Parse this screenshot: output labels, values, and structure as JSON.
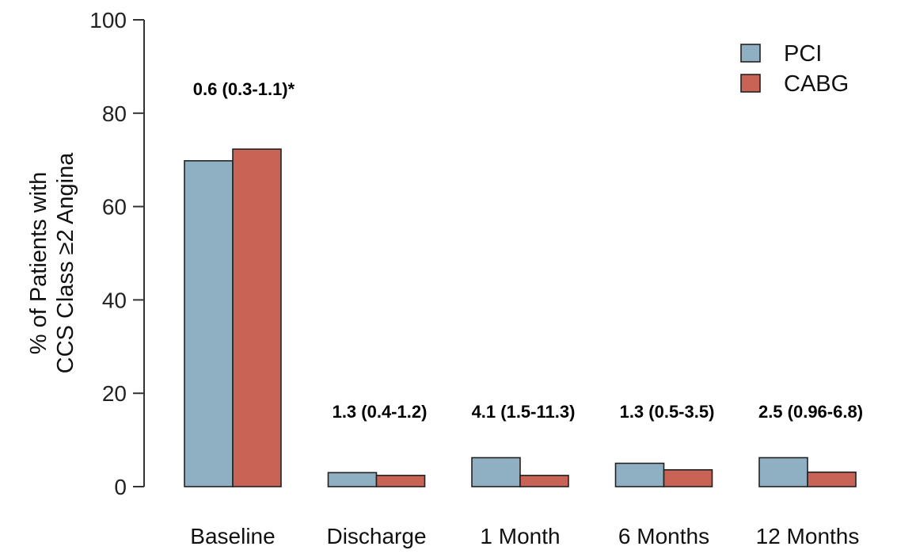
{
  "chart_data": {
    "type": "bar",
    "title": "",
    "xlabel": "",
    "ylabel": [
      "% of Patients with",
      "CCS Class ≥2 Angina"
    ],
    "ylim": [
      0,
      100
    ],
    "yticks": [
      0,
      20,
      40,
      60,
      80,
      100
    ],
    "categories": [
      "Baseline",
      "Discharge",
      "1 Month",
      "6 Months",
      "12 Months"
    ],
    "series": [
      {
        "name": "PCI",
        "color": "#8fafc2",
        "values": [
          69.8,
          3.0,
          6.2,
          5.0,
          6.2
        ]
      },
      {
        "name": "CABG",
        "color": "#c86356",
        "values": [
          72.3,
          2.4,
          2.4,
          3.6,
          3.1
        ]
      }
    ],
    "annotations": [
      "0.6 (0.3-1.1)*",
      "1.3 (0.4-1.2)",
      "4.1 (1.5-11.3)",
      "1.3 (0.5-3.5)",
      "2.5 (0.96-6.8)"
    ],
    "legend_position": "top-right",
    "grid": false
  }
}
